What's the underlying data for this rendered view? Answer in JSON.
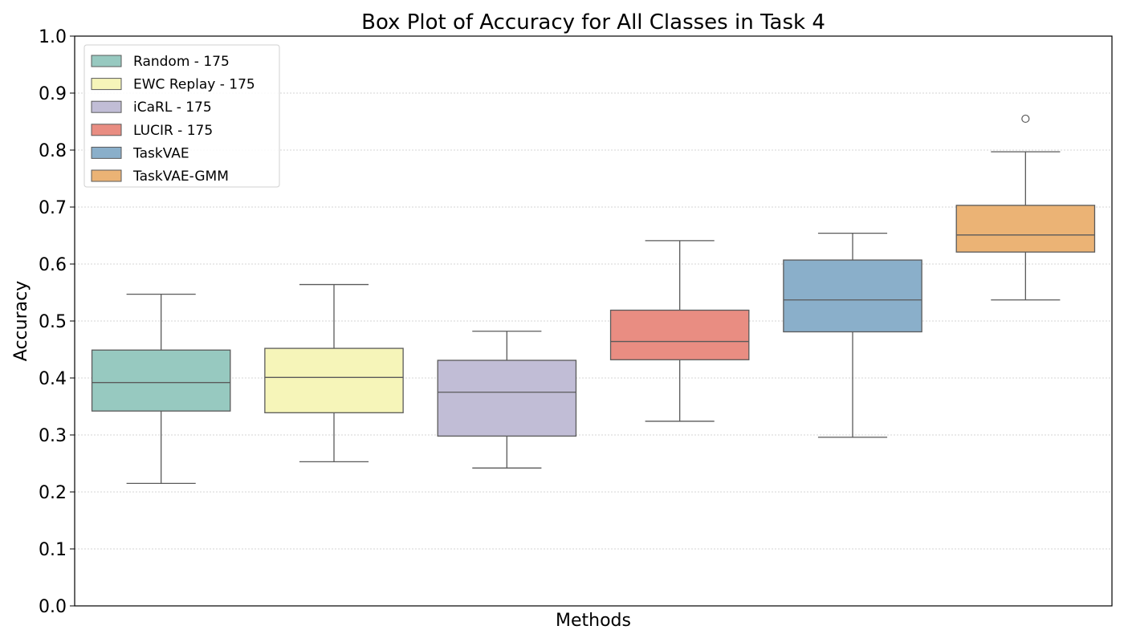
{
  "chart_data": {
    "type": "box",
    "title": "Box Plot of Accuracy for All Classes in Task 4",
    "xlabel": "Methods",
    "ylabel": "Accuracy",
    "ylim": [
      0.0,
      1.0
    ],
    "yticks": [
      "0.0",
      "0.1",
      "0.2",
      "0.3",
      "0.4",
      "0.5",
      "0.6",
      "0.7",
      "0.8",
      "0.9",
      "1.0"
    ],
    "grid": "horizontal dotted",
    "legend_position": "top-left",
    "series": [
      {
        "name": "Random - 175",
        "color": "#97c9c0",
        "whisker_low": 0.215,
        "q1": 0.342,
        "median": 0.392,
        "q3": 0.449,
        "whisker_high": 0.547,
        "outliers": []
      },
      {
        "name": "EWC Replay - 175",
        "color": "#f6f5b9",
        "whisker_low": 0.253,
        "q1": 0.339,
        "median": 0.401,
        "q3": 0.452,
        "whisker_high": 0.564,
        "outliers": []
      },
      {
        "name": "iCaRL - 175",
        "color": "#c1bdd6",
        "whisker_low": 0.242,
        "q1": 0.298,
        "median": 0.375,
        "q3": 0.431,
        "whisker_high": 0.482,
        "outliers": []
      },
      {
        "name": "LUCIR - 175",
        "color": "#e98d82",
        "whisker_low": 0.324,
        "q1": 0.432,
        "median": 0.464,
        "q3": 0.519,
        "whisker_high": 0.641,
        "outliers": []
      },
      {
        "name": "TaskVAE",
        "color": "#8aafca",
        "whisker_low": 0.296,
        "q1": 0.481,
        "median": 0.537,
        "q3": 0.607,
        "whisker_high": 0.654,
        "outliers": []
      },
      {
        "name": "TaskVAE-GMM",
        "color": "#ebb375",
        "whisker_low": 0.537,
        "q1": 0.621,
        "median": 0.651,
        "q3": 0.703,
        "whisker_high": 0.797,
        "outliers": [
          0.855
        ]
      }
    ]
  }
}
